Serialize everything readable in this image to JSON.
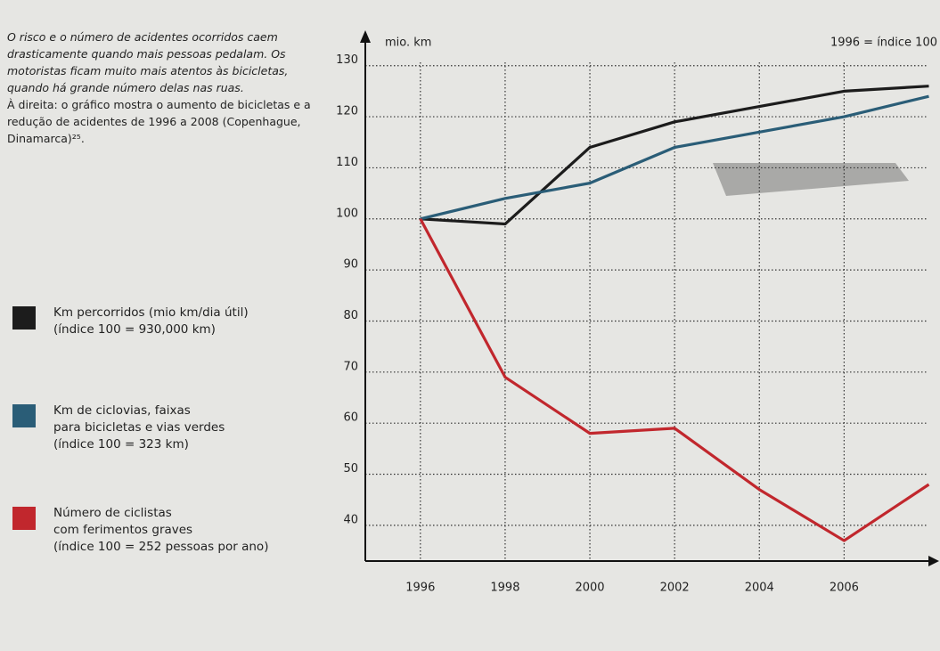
{
  "intro": [
    "O risco e o número de acidentes ocorridos caem drasticamente quando mais pessoas pedalam. Os motoristas ficam muito mais atentos às bicicletas, quando há grande número delas nas ruas.",
    "À direita: o gráfico mostra o aumento de bicicletas e a redução de acidentes de 1996 a 2008 (Copenhague, Dinamarca)²⁵."
  ],
  "chart_data": {
    "type": "line",
    "ylabel": "mio. km",
    "note": "1996 = índice 100",
    "x": [
      1996,
      1998,
      2000,
      2002,
      2004,
      2006,
      2008
    ],
    "xlim": [
      1994.7,
      2008.2
    ],
    "xticks": [
      1996,
      1998,
      2000,
      2002,
      2004,
      2006
    ],
    "ylim": [
      33,
      131
    ],
    "yticks": [
      40,
      50,
      60,
      70,
      80,
      90,
      100,
      110,
      120,
      130
    ],
    "grid": true,
    "series": [
      {
        "name": "Km percorridos (mio km/dia útil)\n(índice 100 = 930,000 km)",
        "color": "#1c1c1c",
        "values": [
          100,
          99,
          114,
          119,
          122,
          125,
          126
        ]
      },
      {
        "name": "Km de ciclovias, faixas\npara bicicletas e vias verdes\n(índice 100 = 323 km)",
        "color": "#2a5d77",
        "values": [
          100,
          104,
          107,
          114,
          117,
          120,
          124
        ]
      },
      {
        "name": "Número de ciclistas\ncom ferimentos graves\n(índice 100 = 252 pessoas por ano)",
        "color": "#c1272d",
        "values": [
          100,
          69,
          58,
          59,
          47,
          37,
          48
        ]
      }
    ]
  }
}
